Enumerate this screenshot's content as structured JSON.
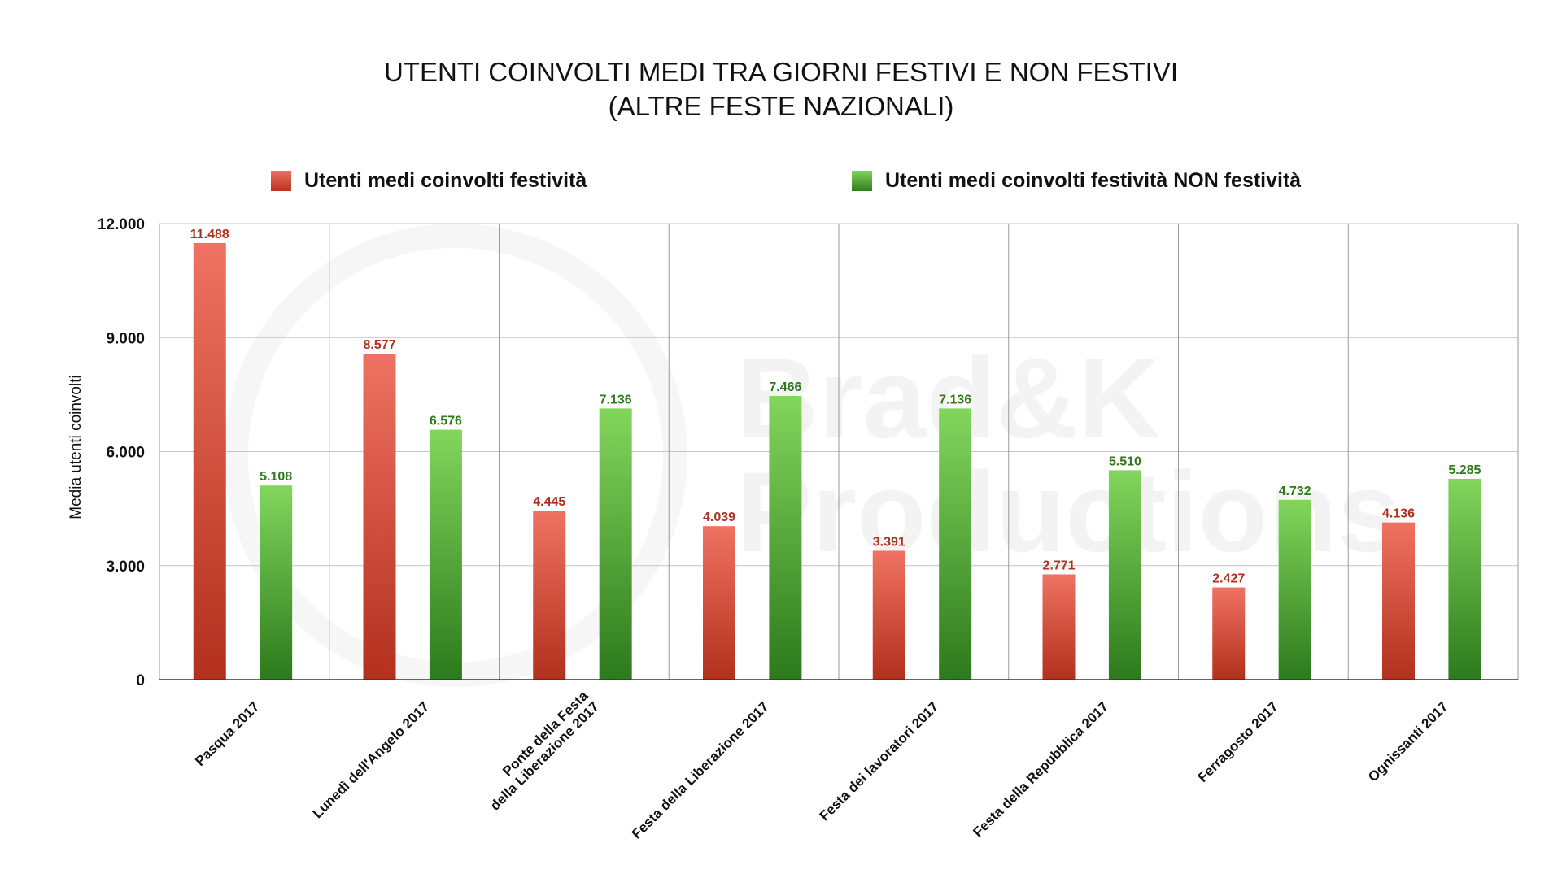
{
  "chart_data": {
    "type": "bar",
    "title": [
      "UTENTI COINVOLTI MEDI TRA GIORNI FESTIVI E NON FESTIVI",
      "(ALTRE FESTE NAZIONALI)"
    ],
    "ylabel": "Media utenti coinvolti",
    "xlabel": "",
    "ylim": [
      0,
      12000
    ],
    "yticks": [
      0,
      3000,
      6000,
      9000,
      12000
    ],
    "ytick_labels": [
      "0",
      "3.000",
      "6.000",
      "9.000",
      "12.000"
    ],
    "grid": true,
    "legend_position": "top",
    "categories": [
      [
        "Pasqua 2017"
      ],
      [
        "Lunedì dell'Angelo 2017"
      ],
      [
        "Ponte della Festa",
        "della Liberazione 2017"
      ],
      [
        "Festa della Liberazione 2017"
      ],
      [
        "Festa dei lavoratori 2017"
      ],
      [
        "Festa della Repubblica 2017"
      ],
      [
        "Ferragosto 2017"
      ],
      [
        "Ognissanti 2017"
      ]
    ],
    "series": [
      {
        "name": "Utenti medi coinvolti festività",
        "color": "#c0392b",
        "label_color": "#b03020",
        "values": [
          11488,
          8577,
          4445,
          4039,
          3391,
          2771,
          2427,
          4136
        ],
        "labels": [
          "11.488",
          "8.577",
          "4.445",
          "4.039",
          "3.391",
          "2.771",
          "2.427",
          "4.136"
        ]
      },
      {
        "name": "Utenti medi coinvolti festività NON festività",
        "color": "#3a8a26",
        "label_color": "#2f7a1c",
        "values": [
          5108,
          6576,
          7136,
          7466,
          7136,
          5510,
          4732,
          5285
        ],
        "labels": [
          "5.108",
          "6.576",
          "7.136",
          "7.466",
          "7.136",
          "5.510",
          "4.732",
          "5.285"
        ]
      }
    ]
  },
  "watermark": [
    "Brad&K",
    "Productions"
  ]
}
